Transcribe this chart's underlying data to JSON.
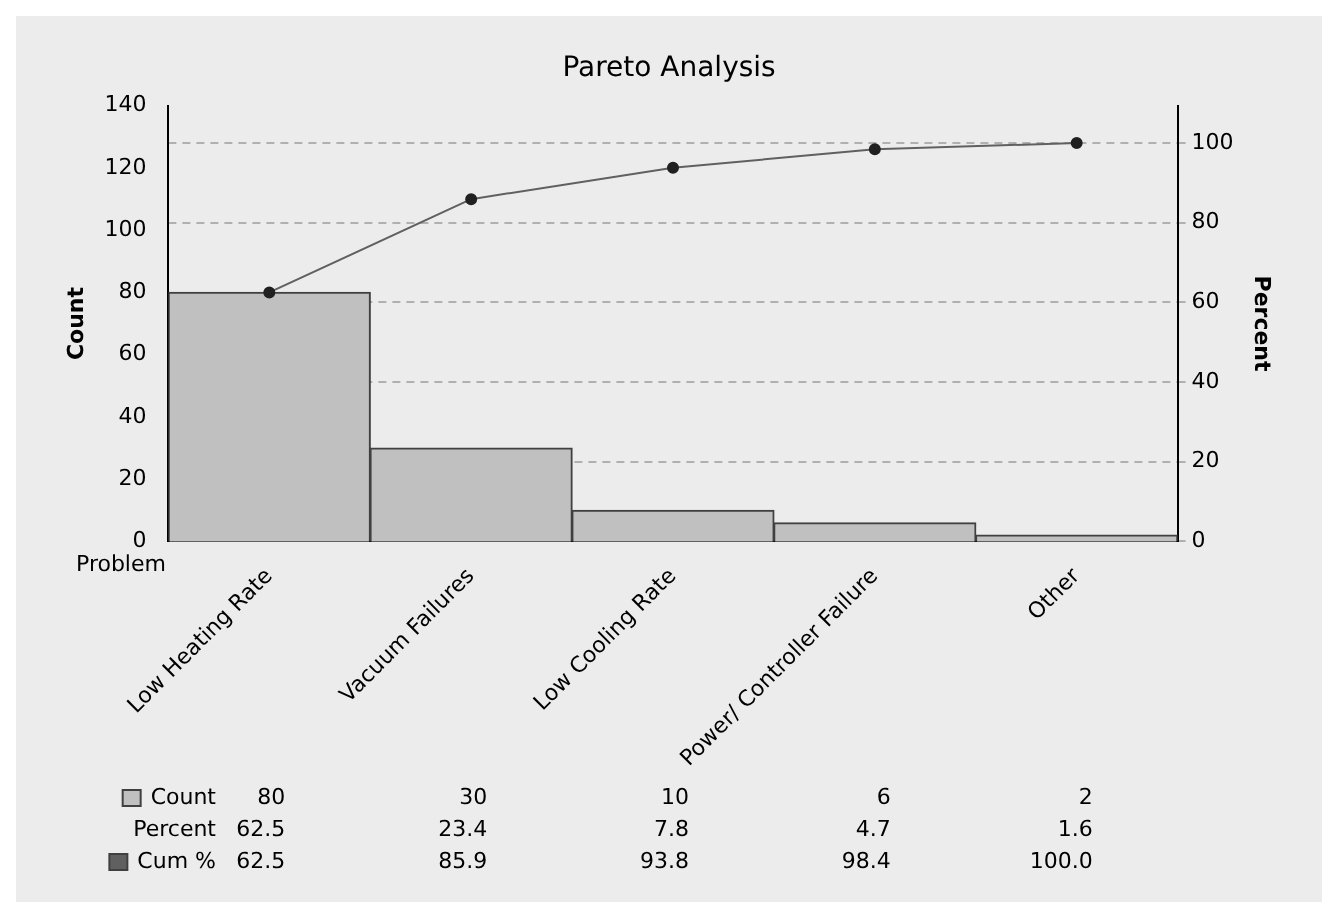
{
  "chart_data": {
    "type": "bar",
    "title": "Pareto Analysis",
    "xlabel": "Problem",
    "ylabel": "Count",
    "y2label": "Percent",
    "categories": [
      "Low Heating Rate",
      "Vacuum Failures",
      "Low Cooling Rate",
      "Power/ Controller Failure",
      "Other"
    ],
    "series": [
      {
        "name": "Count",
        "color": "#c0c0c0",
        "values": [
          80,
          30,
          10,
          6,
          2
        ]
      },
      {
        "name": "Cum %",
        "type": "line",
        "axis": "y2",
        "color": "#606060",
        "values": [
          62.5,
          85.9,
          93.8,
          98.4,
          100.0
        ],
        "value_labels": [
          "62.5",
          "85.9",
          "93.8",
          "98.4",
          "100.0"
        ]
      }
    ],
    "annotations": [
      "Percent",
      "62.5",
      "23.4",
      "7.8",
      "4.7",
      "1.6"
    ],
    "ylim": [
      0,
      140
    ],
    "yticks": [
      0,
      20,
      40,
      60,
      80,
      100,
      120,
      140
    ],
    "y2lim": [
      0,
      109.375
    ],
    "y2ticks": [
      0,
      20,
      40,
      60,
      80,
      100
    ],
    "grid": "y",
    "data_labels": true,
    "marker": "circle",
    "line_style": "solid",
    "legend": "bottom left"
  }
}
